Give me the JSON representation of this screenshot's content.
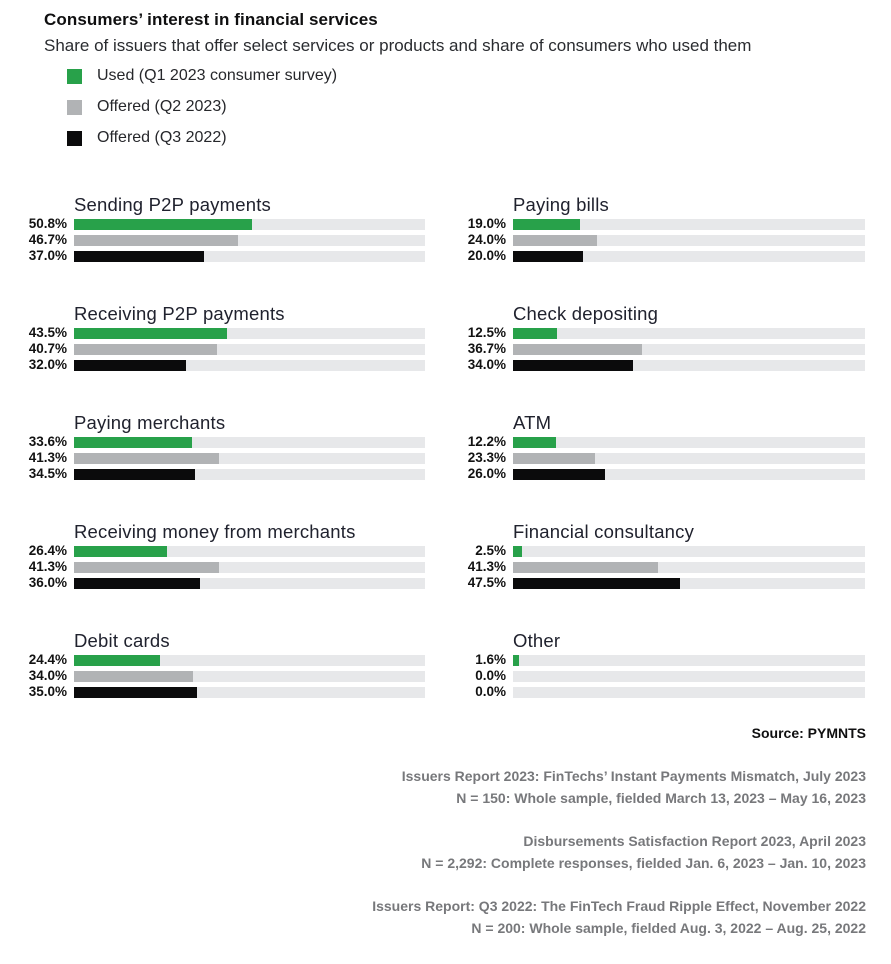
{
  "header": {
    "title": "Consumers’ interest in financial services",
    "subtitle": "Share of issuers that offer select services or products and share of consumers who used them"
  },
  "legend": {
    "items": [
      {
        "label": "Used (Q1 2023 consumer survey)",
        "color": "#28a14a"
      },
      {
        "label": "Offered (Q2 2023)",
        "color": "#b1b3b5"
      },
      {
        "label": "Offered (Q3 2022)",
        "color": "#0b0b0c"
      }
    ]
  },
  "chart_data": {
    "type": "bar",
    "orientation": "horizontal",
    "axis_range": [
      0,
      100
    ],
    "unit": "%",
    "grid": false,
    "legend_position": "top-left",
    "track_color": "#e7e8ea",
    "series": [
      "Used (Q1 2023 consumer survey)",
      "Offered (Q2 2023)",
      "Offered (Q3 2022)"
    ],
    "series_colors": [
      "#28a14a",
      "#b1b3b5",
      "#0b0b0c"
    ],
    "groups": [
      {
        "label": "Sending P2P payments",
        "values": [
          50.8,
          46.7,
          37.0
        ],
        "value_labels": [
          "50.8%",
          "46.7%",
          "37.0%"
        ]
      },
      {
        "label": "Paying bills",
        "values": [
          19.0,
          24.0,
          20.0
        ],
        "value_labels": [
          "19.0%",
          "24.0%",
          "20.0%"
        ]
      },
      {
        "label": "Receiving P2P payments",
        "values": [
          43.5,
          40.7,
          32.0
        ],
        "value_labels": [
          "43.5%",
          "40.7%",
          "32.0%"
        ]
      },
      {
        "label": "Check depositing",
        "values": [
          12.5,
          36.7,
          34.0
        ],
        "value_labels": [
          "12.5%",
          "36.7%",
          "34.0%"
        ]
      },
      {
        "label": "Paying merchants",
        "values": [
          33.6,
          41.3,
          34.5
        ],
        "value_labels": [
          "33.6%",
          "41.3%",
          "34.5%"
        ]
      },
      {
        "label": "ATM",
        "values": [
          12.2,
          23.3,
          26.0
        ],
        "value_labels": [
          "12.2%",
          "23.3%",
          "26.0%"
        ]
      },
      {
        "label": "Receiving money from merchants",
        "values": [
          26.4,
          41.3,
          36.0
        ],
        "value_labels": [
          "26.4%",
          "41.3%",
          "36.0%"
        ]
      },
      {
        "label": "Financial consultancy",
        "values": [
          2.5,
          41.3,
          47.5
        ],
        "value_labels": [
          "2.5%",
          "41.3%",
          "47.5%"
        ]
      },
      {
        "label": "Debit cards",
        "values": [
          24.4,
          34.0,
          35.0
        ],
        "value_labels": [
          "24.4%",
          "34.0%",
          "35.0%"
        ]
      },
      {
        "label": "Other",
        "values": [
          1.6,
          0.0,
          0.0
        ],
        "value_labels": [
          "1.6%",
          "0.0%",
          "0.0%"
        ]
      }
    ]
  },
  "footer": {
    "source": "Source: PYMNTS",
    "blocks": [
      {
        "lines": [
          "Issuers Report 2023: FinTechs’ Instant Payments Mismatch, July 2023",
          "N = 150: Whole sample, fielded March 13, 2023 – May 16, 2023"
        ]
      },
      {
        "lines": [
          "Disbursements Satisfaction Report 2023, April 2023",
          "N = 2,292: Complete responses, fielded Jan. 6, 2023 – Jan. 10, 2023"
        ]
      },
      {
        "lines": [
          "Issuers Report: Q3 2022: The FinTech Fraud Ripple Effect, November 2022",
          "N = 200: Whole sample, fielded Aug. 3, 2022 – Aug. 25, 2022"
        ]
      }
    ]
  }
}
